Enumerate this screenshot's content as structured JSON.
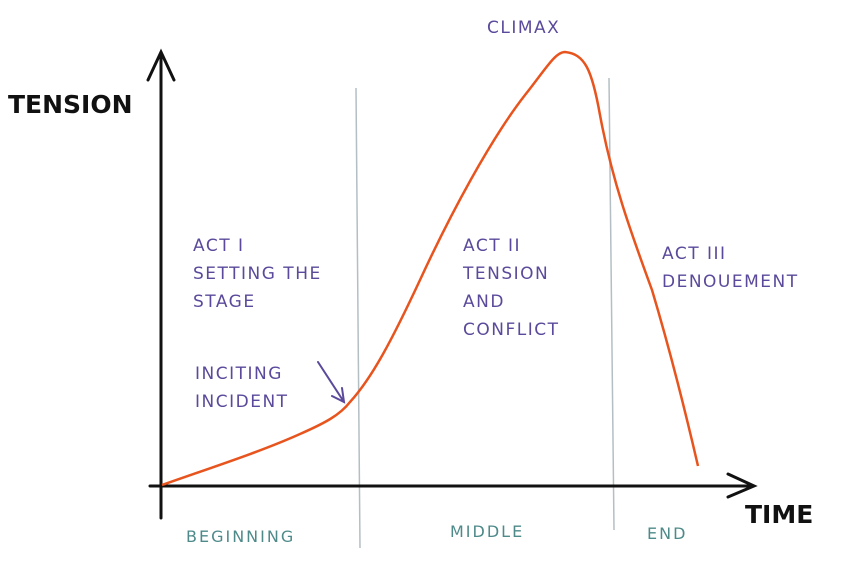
{
  "axes": {
    "y_label": "TENSION",
    "x_label": "TIME"
  },
  "peak_label": "CLIMAX",
  "acts": [
    {
      "lines": [
        "ACT I",
        "SETTING THE",
        "STAGE"
      ]
    },
    {
      "lines": [
        "ACT II",
        "TENSION",
        "AND",
        "CONFLICT"
      ]
    },
    {
      "lines": [
        "ACT III",
        "DENOUEMENT"
      ]
    }
  ],
  "annotation": {
    "lines": [
      "INCITING",
      "INCIDENT"
    ]
  },
  "sections": [
    "BEGINNING",
    "MIDDLE",
    "END"
  ],
  "colors": {
    "curve": "#e8541e",
    "act_text": "#5b4a9b",
    "section_text": "#4e8a8a",
    "divider": "#b4bfc4",
    "axis": "#111111"
  }
}
